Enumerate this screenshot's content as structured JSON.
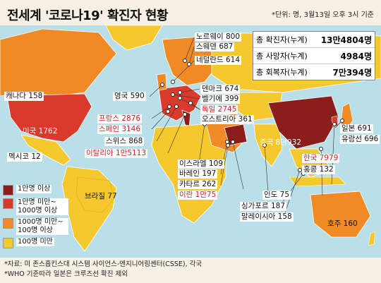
{
  "title": "전세계 '코로나19' 확진자 현황",
  "unit_note": "*단위: 명, 3월13일 오후 3시 기준",
  "totals": {
    "confirmed_label": "총 확진자(누계)",
    "confirmed_value": "13만4804명",
    "deaths_label": "총 사망자(누계)",
    "deaths_value": "4984명",
    "recovered_label": "총 회복자(누계)",
    "recovered_value": "7만394명"
  },
  "legend": [
    {
      "label": "1만명 이상",
      "color": "#8b1d1d"
    },
    {
      "label": "1만명 미만~ 1000명 이상",
      "color": "#d93a2b"
    },
    {
      "label": "1000명 미만~ 100명 이상",
      "color": "#f08a24"
    },
    {
      "label": "100명 미만",
      "color": "#f5c82e"
    }
  ],
  "countries": {
    "norway": "노르웨이 800",
    "sweden": "스웨덴 687",
    "netherlands": "네덜란드 614",
    "uk": "영국 590",
    "denmark": "덴마크 674",
    "belgium": "벨기에 399",
    "germany": "독일 2745",
    "austria": "오스트리아 361",
    "canada": "캐나다 158",
    "france": "프랑스 2876",
    "spain": "스페인 3146",
    "switzerland": "스위스 868",
    "italy": "이탈리아 1만5113",
    "usa": "미국 1762",
    "mexico": "멕시코 12",
    "brazil": "브라질 77",
    "israel": "이스라엘 109",
    "bahrain": "바레인 197",
    "qatar": "카타르 262",
    "iran": "이란 1만75",
    "china": "중국 8만932",
    "japan": "일본 691",
    "cruise": "유람선 696",
    "korea": "한국 7979",
    "hongkong": "홍콩 132",
    "india": "인도 75",
    "singapore": "싱가포르 187",
    "malaysia": "말레이시아 158",
    "australia": "호주 160"
  },
  "footnotes": [
    "*자료: 미 존스홉킨스대 시스템 사이언스-엔지니어링센터(CSSE), 각국",
    "*WHO 기준따라 일본은 크루즈선 확진 제외"
  ]
}
